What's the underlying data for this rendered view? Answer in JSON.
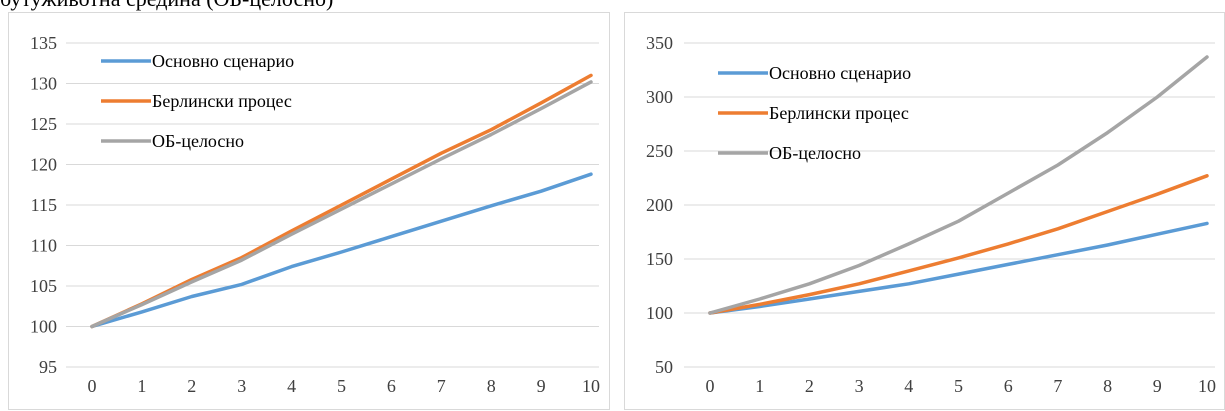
{
  "page": {
    "caption": "бутуживотна средина (ОБ-целосно)"
  },
  "chart_data": [
    {
      "type": "line",
      "title": "",
      "xlabel": "",
      "ylabel": "",
      "x": [
        0,
        1,
        2,
        3,
        4,
        5,
        6,
        7,
        8,
        9,
        10
      ],
      "xticks": [
        "0",
        "1",
        "2",
        "3",
        "4",
        "5",
        "6",
        "7",
        "8",
        "9",
        "10"
      ],
      "ylim": [
        95,
        135
      ],
      "yticks": [
        "95",
        "100",
        "105",
        "110",
        "115",
        "120",
        "125",
        "130",
        "135"
      ],
      "grid": true,
      "legend": "top-left",
      "series": [
        {
          "name": "Основно сценарио",
          "color": "#5b9bd5",
          "values": [
            100,
            101.8,
            103.7,
            105.2,
            107.4,
            109.2,
            111.1,
            113.0,
            114.9,
            116.7,
            118.8
          ]
        },
        {
          "name": "Берлински процес",
          "color": "#ed7d31",
          "values": [
            100,
            102.8,
            105.8,
            108.5,
            111.8,
            115.0,
            118.2,
            121.4,
            124.3,
            127.6,
            131.0
          ]
        },
        {
          "name": "ОБ-целосно",
          "color": "#a5a5a5",
          "values": [
            100,
            102.7,
            105.5,
            108.2,
            111.4,
            114.5,
            117.6,
            120.7,
            123.7,
            126.9,
            130.2
          ]
        }
      ]
    },
    {
      "type": "line",
      "title": "",
      "xlabel": "",
      "ylabel": "",
      "x": [
        0,
        1,
        2,
        3,
        4,
        5,
        6,
        7,
        8,
        9,
        10
      ],
      "xticks": [
        "0",
        "1",
        "2",
        "3",
        "4",
        "5",
        "6",
        "7",
        "8",
        "9",
        "10"
      ],
      "ylim": [
        50,
        350
      ],
      "yticks": [
        "50",
        "100",
        "150",
        "200",
        "250",
        "300",
        "350"
      ],
      "grid": true,
      "legend": "top-left",
      "series": [
        {
          "name": "Основно сценарио",
          "color": "#5b9bd5",
          "values": [
            100,
            106,
            113,
            120,
            127,
            136,
            145,
            154,
            163,
            173,
            183
          ]
        },
        {
          "name": "Берлински процес",
          "color": "#ed7d31",
          "values": [
            100,
            108,
            117,
            127,
            139,
            151,
            164,
            178,
            194,
            210,
            227
          ]
        },
        {
          "name": "ОБ-целосно",
          "color": "#a5a5a5",
          "values": [
            100,
            113,
            127,
            144,
            164,
            185,
            211,
            237,
            267,
            300,
            337
          ]
        }
      ]
    }
  ]
}
